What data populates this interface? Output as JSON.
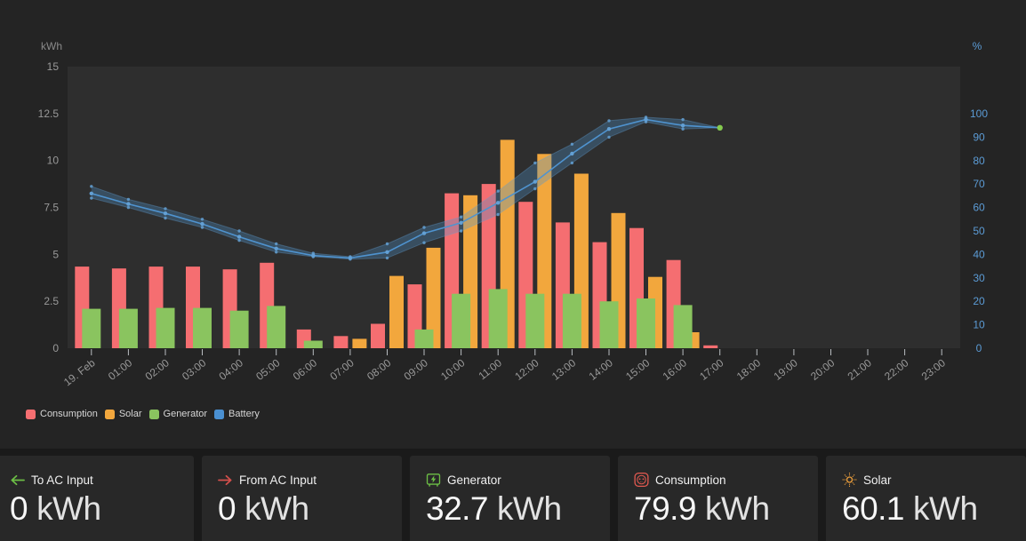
{
  "chart_data": {
    "type": "bar+line",
    "categories": [
      "19. Feb",
      "01:00",
      "02:00",
      "03:00",
      "04:00",
      "05:00",
      "06:00",
      "07:00",
      "08:00",
      "09:00",
      "10:00",
      "11:00",
      "12:00",
      "13:00",
      "14:00",
      "15:00",
      "16:00",
      "17:00",
      "18:00",
      "19:00",
      "20:00",
      "21:00",
      "22:00",
      "23:00"
    ],
    "left_axis": {
      "title": "kWh",
      "ticks": [
        0,
        2.5,
        5,
        7.5,
        10,
        12.5,
        15
      ],
      "range": [
        0,
        15
      ]
    },
    "right_axis": {
      "title": "%",
      "ticks": [
        0,
        10,
        20,
        30,
        40,
        50,
        60,
        70,
        80,
        90,
        100
      ],
      "range": [
        0,
        100
      ]
    },
    "grid": false,
    "legend_position": "bottom-left",
    "series": [
      {
        "name": "Consumption",
        "type": "bar",
        "axis": "left",
        "color": "#f56e71",
        "values": [
          4.35,
          4.25,
          4.35,
          4.35,
          4.2,
          4.55,
          1.0,
          0.65,
          1.3,
          3.4,
          8.25,
          8.75,
          7.8,
          6.7,
          5.65,
          6.4,
          4.7,
          0.15,
          0,
          0,
          0,
          0,
          0,
          0
        ]
      },
      {
        "name": "Solar",
        "type": "bar",
        "axis": "left",
        "color": "#f2a73d",
        "values": [
          0,
          0,
          0,
          0,
          0,
          0,
          0,
          0.5,
          3.85,
          5.35,
          8.15,
          11.1,
          10.35,
          9.3,
          7.2,
          3.8,
          0.85,
          0,
          0,
          0,
          0,
          0,
          0,
          0
        ]
      },
      {
        "name": "Generator",
        "type": "bar",
        "axis": "left",
        "color": "#8ac45f",
        "values": [
          2.1,
          2.1,
          2.15,
          2.15,
          2.0,
          2.25,
          0.4,
          0,
          0,
          1.0,
          2.9,
          3.15,
          2.9,
          2.9,
          2.5,
          2.65,
          2.3,
          0,
          0,
          0,
          0,
          0,
          0,
          0
        ]
      },
      {
        "name": "Battery",
        "type": "line",
        "axis": "right",
        "color": "#4f93cf",
        "marker_color": "#63a0d4",
        "last_marker_color": "#85cb4f",
        "values": [
          66,
          61.5,
          57.5,
          53,
          47.5,
          42.5,
          39.5,
          38.5,
          41,
          49,
          53.5,
          62,
          71,
          83,
          93.5,
          97.5,
          95,
          94
        ],
        "band_upper": [
          69,
          63.5,
          59.5,
          55,
          50,
          44.5,
          40.5,
          39,
          44.5,
          51.5,
          56,
          67,
          79,
          87,
          97,
          98.5,
          97.5,
          94
        ],
        "band_lower": [
          64,
          60,
          55.5,
          51.5,
          46,
          41,
          39,
          38,
          38.5,
          45,
          50,
          57,
          68,
          79,
          90,
          96.5,
          93.5,
          94
        ]
      }
    ]
  },
  "legend": {
    "items": [
      {
        "label": "Consumption",
        "color": "#f56e71"
      },
      {
        "label": "Solar",
        "color": "#f2a73d"
      },
      {
        "label": "Generator",
        "color": "#8ac45f"
      },
      {
        "label": "Battery",
        "color": "#4a90d2"
      }
    ]
  },
  "cards": [
    {
      "label": "To AC Input",
      "value": "0",
      "unit": "kWh",
      "icon": "arrow-left-icon",
      "icon_color": "#6cbe45"
    },
    {
      "label": "From AC Input",
      "value": "0",
      "unit": "kWh",
      "icon": "arrow-right-icon",
      "icon_color": "#d4504c"
    },
    {
      "label": "Generator",
      "value": "32.7",
      "unit": "kWh",
      "icon": "generator-icon",
      "icon_color": "#6cbe45"
    },
    {
      "label": "Consumption",
      "value": "79.9",
      "unit": "kWh",
      "icon": "power-socket-icon",
      "icon_color": "#e25950"
    },
    {
      "label": "Solar",
      "value": "60.1",
      "unit": "kWh",
      "icon": "sun-icon",
      "icon_color": "#f0a13c"
    }
  ],
  "colors": {
    "page_bg": "#1a1a1a",
    "panel_bg": "#242424",
    "plot_bg": "#2e2e2e",
    "card_bg": "#282828",
    "axis_text": "#999999",
    "right_axis_text": "#5b9bd5",
    "band_fill": "rgba(79,147,202,0.32)"
  }
}
